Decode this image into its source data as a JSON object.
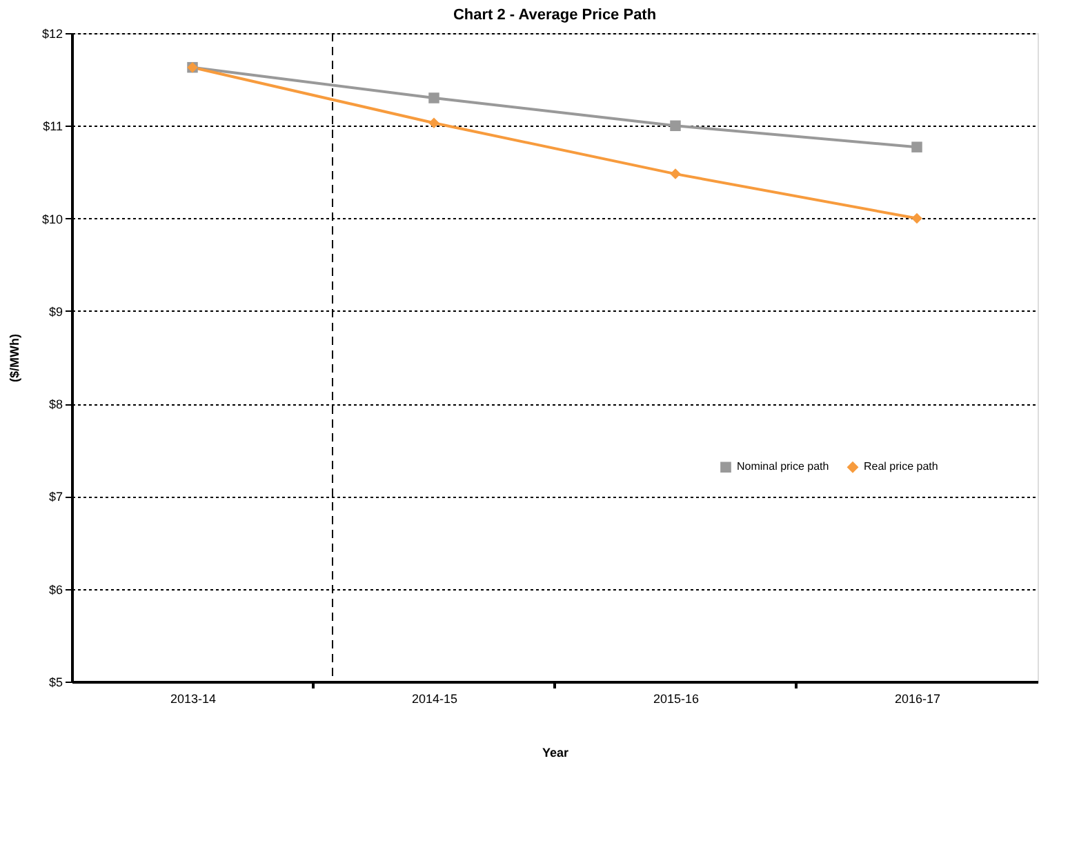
{
  "chart_data": {
    "type": "line",
    "title": "Chart 2 - Average Price Path",
    "xlabel": "Year",
    "ylabel": "($/MWh)",
    "categories": [
      "2013-14",
      "2014-15",
      "2015-16",
      "2016-17"
    ],
    "series": [
      {
        "name": "Nominal price path",
        "color": "#999999",
        "marker": "square",
        "values": [
          11.63,
          11.3,
          11.0,
          10.77
        ]
      },
      {
        "name": "Real price path",
        "color": "#f79b3d",
        "marker": "diamond",
        "values": [
          11.63,
          11.03,
          10.48,
          10.0
        ]
      }
    ],
    "ylim": [
      5,
      12
    ],
    "yticks": [
      {
        "value": 5,
        "label": "$5"
      },
      {
        "value": 6,
        "label": "$6"
      },
      {
        "value": 7,
        "label": "$7"
      },
      {
        "value": 8,
        "label": "$8"
      },
      {
        "value": 9,
        "label": "$9"
      },
      {
        "value": 10,
        "label": "$10"
      },
      {
        "value": 11,
        "label": "$11"
      },
      {
        "value": 12,
        "label": "$12"
      }
    ],
    "grid": "y",
    "legend": "right",
    "line_style": "solid"
  }
}
